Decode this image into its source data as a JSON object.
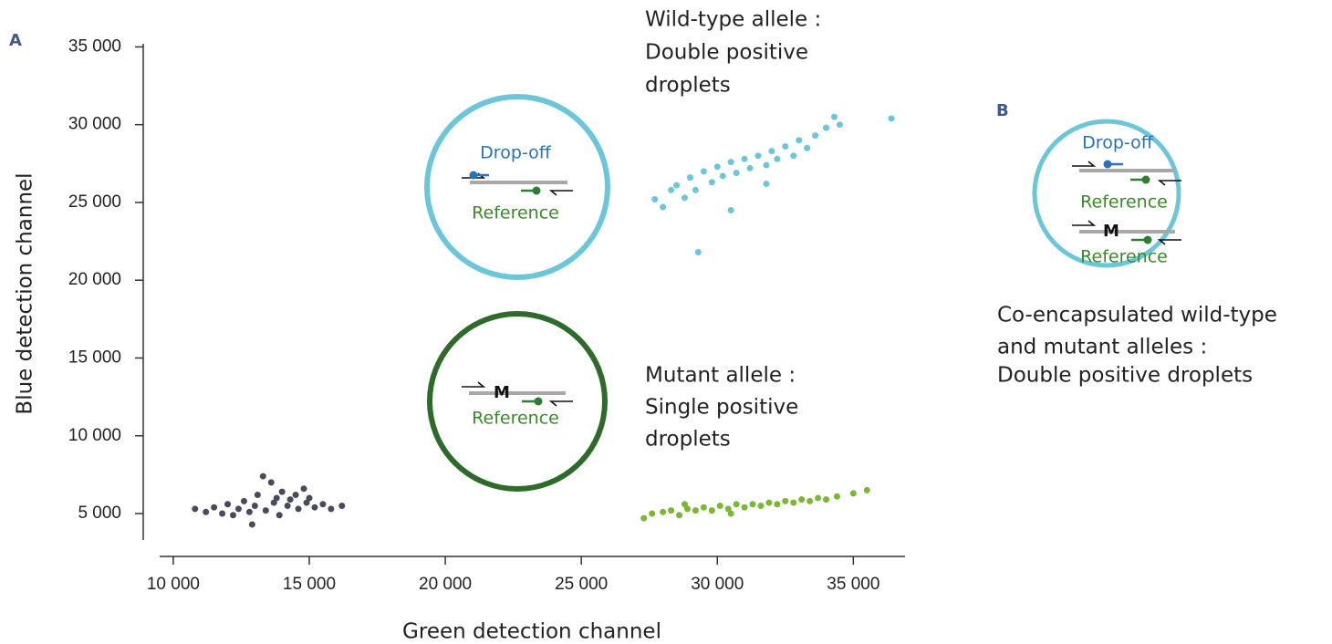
{
  "chart_data": {
    "type": "scatter",
    "panel_label": "A",
    "xlabel": "Green detection channel",
    "ylabel": "Blue detection channel",
    "xlim": [
      9500,
      36900
    ],
    "ylim": [
      3300,
      35200
    ],
    "xticks": [
      {
        "value": 10000,
        "label": "10 000"
      },
      {
        "value": 15000,
        "label": "15 000"
      },
      {
        "value": 20000,
        "label": "20 000"
      },
      {
        "value": 25000,
        "label": "25 000"
      },
      {
        "value": 30000,
        "label": "30 000"
      },
      {
        "value": 35000,
        "label": "35 000"
      }
    ],
    "yticks": [
      {
        "value": 5000,
        "label": "5 000"
      },
      {
        "value": 10000,
        "label": "10 000"
      },
      {
        "value": 15000,
        "label": "15 000"
      },
      {
        "value": 20000,
        "label": "20 000"
      },
      {
        "value": 25000,
        "label": "25 000"
      },
      {
        "value": 30000,
        "label": "30 000"
      },
      {
        "value": 35000,
        "label": "35 000"
      }
    ],
    "series": [
      {
        "color": "#474b5c",
        "x": [
          10800,
          11200,
          11500,
          11800,
          12000,
          12200,
          12400,
          12600,
          12800,
          13000,
          13100,
          13300,
          13400,
          13600,
          13700,
          13800,
          13900,
          14000,
          14200,
          14300,
          14500,
          14600,
          14800,
          14900,
          15000,
          15200,
          15500,
          15800,
          16200,
          12900
        ],
        "y": [
          5300,
          5100,
          5400,
          5000,
          5600,
          4900,
          5300,
          5800,
          5100,
          5500,
          6200,
          7400,
          5200,
          7000,
          5700,
          6000,
          4900,
          6400,
          5500,
          5900,
          6200,
          5300,
          6600,
          5700,
          6000,
          5400,
          5600,
          5300,
          5500,
          4300
        ]
      },
      {
        "color": "#6cc6da",
        "x": [
          27700,
          28000,
          28300,
          28500,
          28800,
          29000,
          29200,
          29500,
          29800,
          30000,
          30200,
          30500,
          30700,
          31000,
          31200,
          31500,
          31800,
          32000,
          32200,
          32500,
          32800,
          33000,
          33300,
          33600,
          34000,
          34300,
          34500,
          36400,
          29300,
          30500,
          31800
        ],
        "y": [
          25200,
          24700,
          25800,
          26100,
          25300,
          26600,
          25800,
          27000,
          26300,
          27300,
          26700,
          27600,
          26900,
          27800,
          27200,
          28000,
          27400,
          28300,
          27800,
          28600,
          28000,
          29000,
          28500,
          29300,
          29800,
          30500,
          30000,
          30400,
          21800,
          24500,
          26200
        ]
      },
      {
        "color": "#7ab733",
        "x": [
          27300,
          27600,
          28000,
          28300,
          28600,
          28900,
          29200,
          29500,
          29800,
          30100,
          30400,
          30700,
          31000,
          31300,
          31600,
          31900,
          32200,
          32500,
          32800,
          33100,
          33400,
          33700,
          34000,
          34400,
          35000,
          35500,
          28800,
          30500
        ],
        "y": [
          4700,
          5000,
          5100,
          5200,
          4900,
          5300,
          5200,
          5400,
          5200,
          5500,
          5300,
          5600,
          5400,
          5600,
          5500,
          5700,
          5600,
          5800,
          5700,
          5900,
          5800,
          6000,
          5900,
          6100,
          6300,
          6500,
          5600,
          5000
        ]
      }
    ],
    "annotations": [
      {
        "lines": [
          "Wild-type allele :",
          "Double positive",
          "droplets"
        ]
      },
      {
        "lines": [
          "Mutant allele :",
          "Single positive",
          "droplets"
        ]
      }
    ],
    "diagrams": [
      {
        "labels": [
          "Drop-off",
          "Reference"
        ]
      },
      {
        "labels": [
          "M",
          "Reference"
        ]
      }
    ]
  },
  "panel_b": {
    "label": "B",
    "diagram": [
      "Drop-off",
      "Reference",
      "M",
      "Reference"
    ],
    "caption": [
      "Co-encapsulated wild-type",
      "and mutant alleles :",
      "Double positive droplets"
    ]
  }
}
